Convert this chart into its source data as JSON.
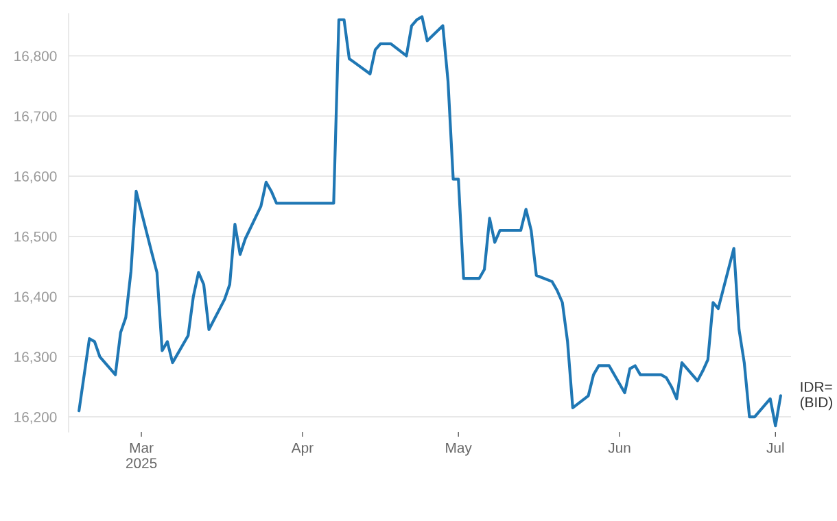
{
  "chart_data": {
    "type": "line",
    "x": [
      "2025-02-17",
      "2025-02-19",
      "2025-02-20",
      "2025-02-21",
      "2025-02-24",
      "2025-02-25",
      "2025-02-26",
      "2025-02-27",
      "2025-02-28",
      "2025-03-03",
      "2025-03-04",
      "2025-03-05",
      "2025-03-06",
      "2025-03-07",
      "2025-03-10",
      "2025-03-11",
      "2025-03-12",
      "2025-03-13",
      "2025-03-14",
      "2025-03-17",
      "2025-03-18",
      "2025-03-19",
      "2025-03-20",
      "2025-03-21",
      "2025-03-24",
      "2025-03-25",
      "2025-03-26",
      "2025-03-27",
      "2025-04-07",
      "2025-04-08",
      "2025-04-09",
      "2025-04-10",
      "2025-04-11",
      "2025-04-14",
      "2025-04-15",
      "2025-04-16",
      "2025-04-18",
      "2025-04-21",
      "2025-04-22",
      "2025-04-23",
      "2025-04-24",
      "2025-04-25",
      "2025-04-28",
      "2025-04-29",
      "2025-04-30",
      "2025-05-01",
      "2025-05-02",
      "2025-05-05",
      "2025-05-06",
      "2025-05-07",
      "2025-05-08",
      "2025-05-09",
      "2025-05-13",
      "2025-05-14",
      "2025-05-15",
      "2025-05-16",
      "2025-05-19",
      "2025-05-20",
      "2025-05-21",
      "2025-05-22",
      "2025-05-23",
      "2025-05-26",
      "2025-05-27",
      "2025-05-28",
      "2025-05-30",
      "2025-06-02",
      "2025-06-03",
      "2025-06-04",
      "2025-06-05",
      "2025-06-09",
      "2025-06-10",
      "2025-06-11",
      "2025-06-12",
      "2025-06-13",
      "2025-06-16",
      "2025-06-17",
      "2025-06-18",
      "2025-06-19",
      "2025-06-20",
      "2025-06-23",
      "2025-06-24",
      "2025-06-25",
      "2025-06-26",
      "2025-06-27",
      "2025-06-30",
      "2025-07-01",
      "2025-07-02"
    ],
    "series": [
      {
        "name": "IDR=\n(BID)",
        "color": "#1f77b4",
        "values": [
          16210,
          16330,
          16325,
          16300,
          16270,
          16340,
          16365,
          16442,
          16575,
          16473,
          16440,
          16310,
          16325,
          16290,
          16335,
          16400,
          16440,
          16420,
          16345,
          16395,
          16420,
          16520,
          16470,
          16496,
          16550,
          16590,
          16575,
          16555,
          16555,
          16860,
          16860,
          16795,
          16789,
          16770,
          16810,
          16820,
          16820,
          16800,
          16850,
          16860,
          16865,
          16825,
          16850,
          16758,
          16595,
          16595,
          16430,
          16430,
          16445,
          16530,
          16490,
          16510,
          16510,
          16545,
          16510,
          16435,
          16425,
          16410,
          16390,
          16325,
          16215,
          16235,
          16270,
          16285,
          16285,
          16240,
          16280,
          16285,
          16270,
          16270,
          16265,
          16250,
          16230,
          16290,
          16260,
          16276,
          16295,
          16390,
          16380,
          16480,
          16345,
          16290,
          16200,
          16200,
          16230,
          16185,
          16235
        ]
      }
    ],
    "xlim": [
      "2025-02-15",
      "2025-07-04"
    ],
    "xticks": [
      {
        "value": "2025-03-01",
        "label": "Mar\n2025"
      },
      {
        "value": "2025-04-01",
        "label": "Apr"
      },
      {
        "value": "2025-05-01",
        "label": "May"
      },
      {
        "value": "2025-06-01",
        "label": "Jun"
      },
      {
        "value": "2025-07-01",
        "label": "Jul"
      }
    ],
    "ylim": [
      16175,
      16870
    ],
    "yticks": [
      {
        "value": 16200,
        "label": "16,200"
      },
      {
        "value": 16300,
        "label": "16,300"
      },
      {
        "value": 16400,
        "label": "16,400"
      },
      {
        "value": 16500,
        "label": "16,500"
      },
      {
        "value": 16600,
        "label": "16,600"
      },
      {
        "value": 16700,
        "label": "16,700"
      },
      {
        "value": 16800,
        "label": "16,800"
      }
    ],
    "grid": "y",
    "legend": false,
    "marker": "none",
    "line_style": "solid"
  }
}
